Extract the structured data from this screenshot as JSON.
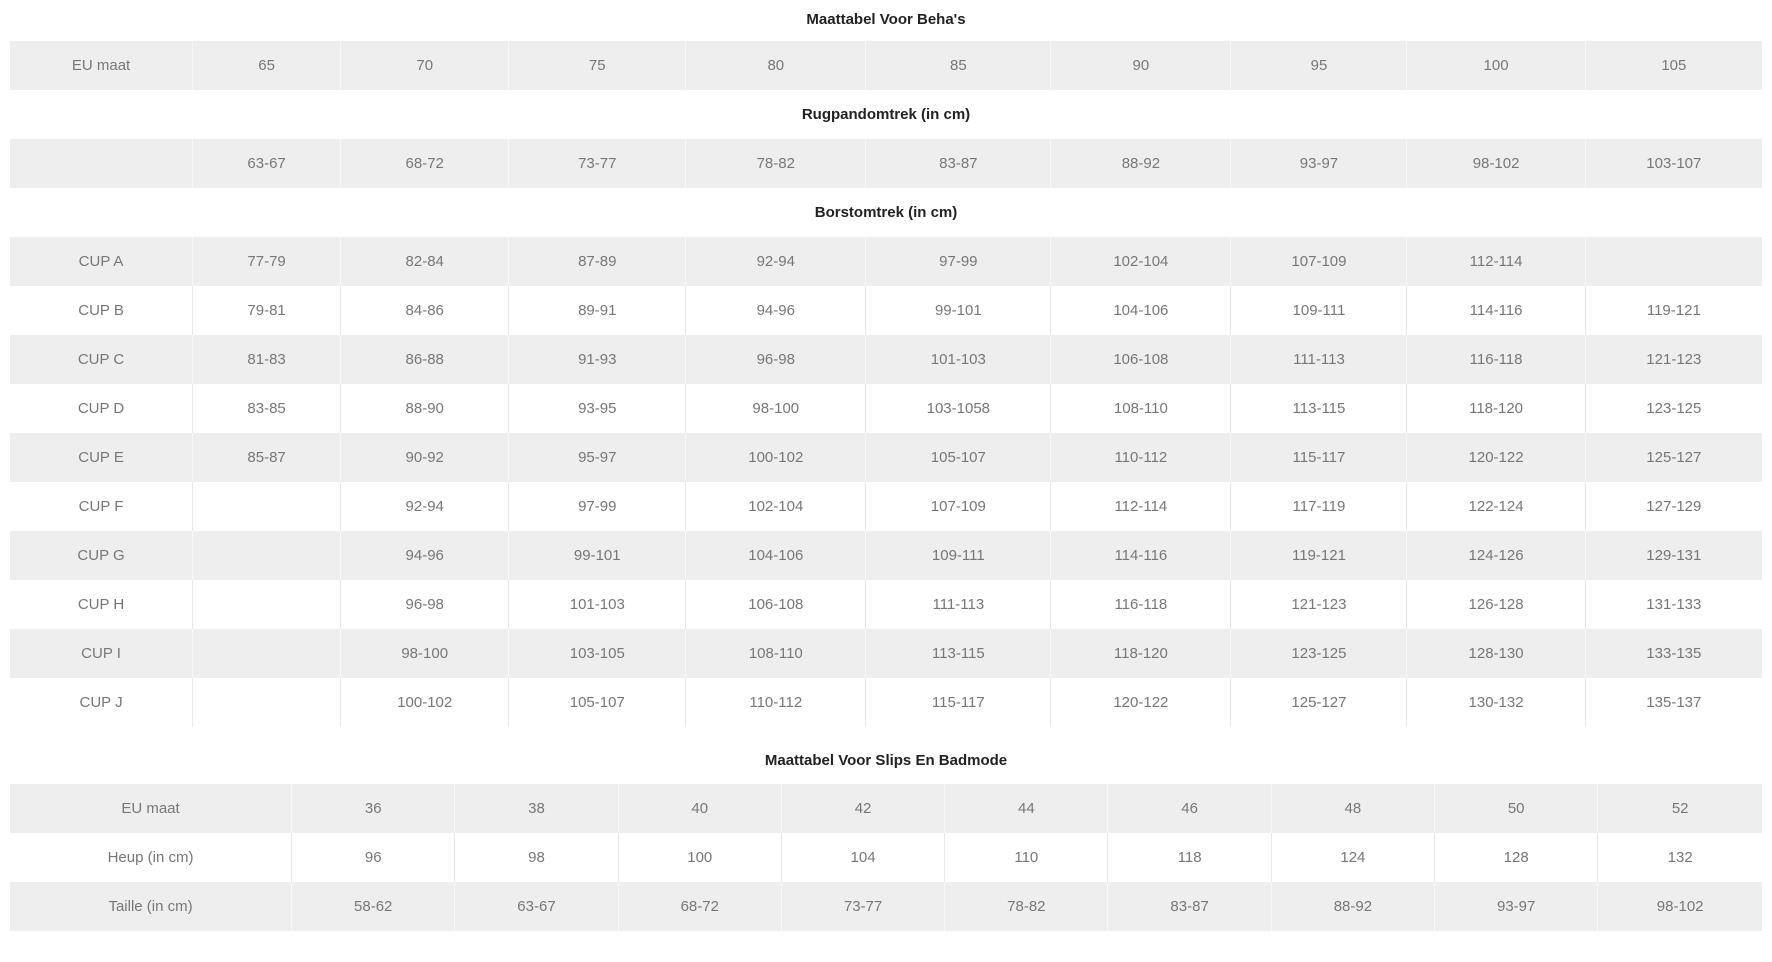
{
  "colors": {
    "row_shade_bg": "#eeeeee",
    "row_plain_bg": "#ffffff",
    "cell_text": "#777777",
    "heading_text": "#222222",
    "separator_on_plain": "#e9e9e9",
    "separator_on_shade": "#f8f8f8"
  },
  "bra_table": {
    "title": "Maattabel Voor Beha's",
    "rows": [
      {
        "type": "data",
        "label": "EU maat",
        "values": [
          "65",
          "70",
          "75",
          "80",
          "85",
          "90",
          "95",
          "100",
          "105"
        ]
      },
      {
        "type": "heading",
        "text": "Rugpandomtrek (in cm)"
      },
      {
        "type": "data",
        "label": "",
        "values": [
          "63-67",
          "68-72",
          "73-77",
          "78-82",
          "83-87",
          "88-92",
          "93-97",
          "98-102",
          "103-107"
        ]
      },
      {
        "type": "heading",
        "text": "Borstomtrek (in cm)"
      },
      {
        "type": "data",
        "label": "CUP A",
        "values": [
          "77-79",
          "82-84",
          "87-89",
          "92-94",
          "97-99",
          "102-104",
          "107-109",
          "112-114",
          ""
        ]
      },
      {
        "type": "data",
        "label": "CUP B",
        "values": [
          "79-81",
          "84-86",
          "89-91",
          "94-96",
          "99-101",
          "104-106",
          "109-111",
          "114-116",
          "119-121"
        ]
      },
      {
        "type": "data",
        "label": "CUP C",
        "values": [
          "81-83",
          "86-88",
          "91-93",
          "96-98",
          "101-103",
          "106-108",
          "111-113",
          "116-118",
          "121-123"
        ]
      },
      {
        "type": "data",
        "label": "CUP D",
        "values": [
          "83-85",
          "88-90",
          "93-95",
          "98-100",
          "103-1058",
          "108-110",
          "113-115",
          "118-120",
          "123-125"
        ]
      },
      {
        "type": "data",
        "label": "CUP E",
        "values": [
          "85-87",
          "90-92",
          "95-97",
          "100-102",
          "105-107",
          "110-112",
          "115-117",
          "120-122",
          "125-127"
        ]
      },
      {
        "type": "data",
        "label": "CUP F",
        "values": [
          "",
          "92-94",
          "97-99",
          "102-104",
          "107-109",
          "112-114",
          "117-119",
          "122-124",
          "127-129"
        ]
      },
      {
        "type": "data",
        "label": "CUP G",
        "values": [
          "",
          "94-96",
          "99-101",
          "104-106",
          "109-111",
          "114-116",
          "119-121",
          "124-126",
          "129-131"
        ]
      },
      {
        "type": "data",
        "label": "CUP H",
        "values": [
          "",
          "96-98",
          "101-103",
          "106-108",
          "111-113",
          "116-118",
          "121-123",
          "126-128",
          "131-133"
        ]
      },
      {
        "type": "data",
        "label": "CUP I",
        "values": [
          "",
          "98-100",
          "103-105",
          "108-110",
          "113-115",
          "118-120",
          "123-125",
          "128-130",
          "133-135"
        ]
      },
      {
        "type": "data",
        "label": "CUP J",
        "values": [
          "",
          "100-102",
          "105-107",
          "110-112",
          "115-117",
          "120-122",
          "125-127",
          "130-132",
          "135-137"
        ]
      }
    ]
  },
  "slips_table": {
    "title": "Maattabel Voor Slips En Badmode",
    "rows": [
      {
        "type": "data",
        "label": "EU maat",
        "values": [
          "36",
          "38",
          "40",
          "42",
          "44",
          "46",
          "48",
          "50",
          "52"
        ]
      },
      {
        "type": "data",
        "label": "Heup (in cm)",
        "values": [
          "96",
          "98",
          "100",
          "104",
          "110",
          "118",
          "124",
          "128",
          "132"
        ]
      },
      {
        "type": "data",
        "label": "Taille (in cm)",
        "values": [
          "58-62",
          "63-67",
          "68-72",
          "73-77",
          "78-82",
          "83-87",
          "88-92",
          "93-97",
          "98-102"
        ]
      }
    ]
  }
}
